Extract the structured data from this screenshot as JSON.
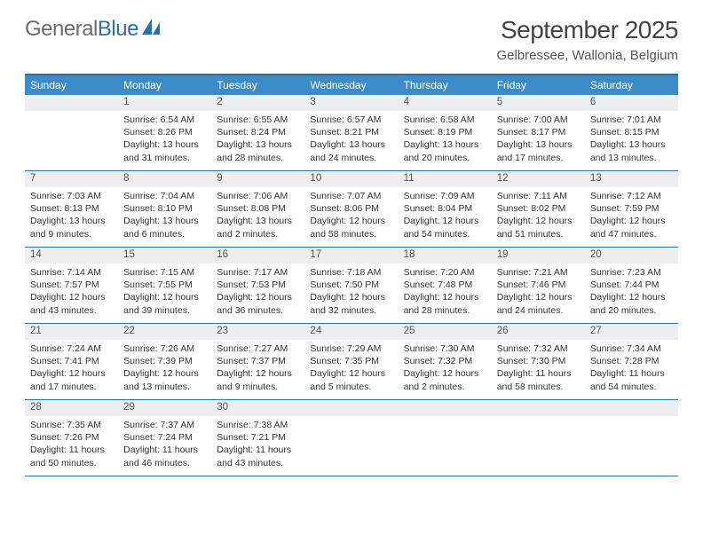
{
  "logo": {
    "part1": "General",
    "part2": "Blue"
  },
  "title": "September 2025",
  "subtitle": "Gelbressee, Wallonia, Belgium",
  "colors": {
    "header_bg": "#3b8bc8",
    "border": "#2b6fab",
    "daynum_bg": "#eceeef",
    "text": "#333333"
  },
  "typography": {
    "title_fontsize": 28,
    "subtitle_fontsize": 15,
    "header_fontsize": 12,
    "cell_fontsize": 10.5
  },
  "day_headers": [
    "Sunday",
    "Monday",
    "Tuesday",
    "Wednesday",
    "Thursday",
    "Friday",
    "Saturday"
  ],
  "weeks": [
    [
      {
        "n": "",
        "lines": []
      },
      {
        "n": "1",
        "lines": [
          "Sunrise: 6:54 AM",
          "Sunset: 8:26 PM",
          "Daylight: 13 hours and 31 minutes."
        ]
      },
      {
        "n": "2",
        "lines": [
          "Sunrise: 6:55 AM",
          "Sunset: 8:24 PM",
          "Daylight: 13 hours and 28 minutes."
        ]
      },
      {
        "n": "3",
        "lines": [
          "Sunrise: 6:57 AM",
          "Sunset: 8:21 PM",
          "Daylight: 13 hours and 24 minutes."
        ]
      },
      {
        "n": "4",
        "lines": [
          "Sunrise: 6:58 AM",
          "Sunset: 8:19 PM",
          "Daylight: 13 hours and 20 minutes."
        ]
      },
      {
        "n": "5",
        "lines": [
          "Sunrise: 7:00 AM",
          "Sunset: 8:17 PM",
          "Daylight: 13 hours and 17 minutes."
        ]
      },
      {
        "n": "6",
        "lines": [
          "Sunrise: 7:01 AM",
          "Sunset: 8:15 PM",
          "Daylight: 13 hours and 13 minutes."
        ]
      }
    ],
    [
      {
        "n": "7",
        "lines": [
          "Sunrise: 7:03 AM",
          "Sunset: 8:13 PM",
          "Daylight: 13 hours and 9 minutes."
        ]
      },
      {
        "n": "8",
        "lines": [
          "Sunrise: 7:04 AM",
          "Sunset: 8:10 PM",
          "Daylight: 13 hours and 6 minutes."
        ]
      },
      {
        "n": "9",
        "lines": [
          "Sunrise: 7:06 AM",
          "Sunset: 8:08 PM",
          "Daylight: 13 hours and 2 minutes."
        ]
      },
      {
        "n": "10",
        "lines": [
          "Sunrise: 7:07 AM",
          "Sunset: 8:06 PM",
          "Daylight: 12 hours and 58 minutes."
        ]
      },
      {
        "n": "11",
        "lines": [
          "Sunrise: 7:09 AM",
          "Sunset: 8:04 PM",
          "Daylight: 12 hours and 54 minutes."
        ]
      },
      {
        "n": "12",
        "lines": [
          "Sunrise: 7:11 AM",
          "Sunset: 8:02 PM",
          "Daylight: 12 hours and 51 minutes."
        ]
      },
      {
        "n": "13",
        "lines": [
          "Sunrise: 7:12 AM",
          "Sunset: 7:59 PM",
          "Daylight: 12 hours and 47 minutes."
        ]
      }
    ],
    [
      {
        "n": "14",
        "lines": [
          "Sunrise: 7:14 AM",
          "Sunset: 7:57 PM",
          "Daylight: 12 hours and 43 minutes."
        ]
      },
      {
        "n": "15",
        "lines": [
          "Sunrise: 7:15 AM",
          "Sunset: 7:55 PM",
          "Daylight: 12 hours and 39 minutes."
        ]
      },
      {
        "n": "16",
        "lines": [
          "Sunrise: 7:17 AM",
          "Sunset: 7:53 PM",
          "Daylight: 12 hours and 36 minutes."
        ]
      },
      {
        "n": "17",
        "lines": [
          "Sunrise: 7:18 AM",
          "Sunset: 7:50 PM",
          "Daylight: 12 hours and 32 minutes."
        ]
      },
      {
        "n": "18",
        "lines": [
          "Sunrise: 7:20 AM",
          "Sunset: 7:48 PM",
          "Daylight: 12 hours and 28 minutes."
        ]
      },
      {
        "n": "19",
        "lines": [
          "Sunrise: 7:21 AM",
          "Sunset: 7:46 PM",
          "Daylight: 12 hours and 24 minutes."
        ]
      },
      {
        "n": "20",
        "lines": [
          "Sunrise: 7:23 AM",
          "Sunset: 7:44 PM",
          "Daylight: 12 hours and 20 minutes."
        ]
      }
    ],
    [
      {
        "n": "21",
        "lines": [
          "Sunrise: 7:24 AM",
          "Sunset: 7:41 PM",
          "Daylight: 12 hours and 17 minutes."
        ]
      },
      {
        "n": "22",
        "lines": [
          "Sunrise: 7:26 AM",
          "Sunset: 7:39 PM",
          "Daylight: 12 hours and 13 minutes."
        ]
      },
      {
        "n": "23",
        "lines": [
          "Sunrise: 7:27 AM",
          "Sunset: 7:37 PM",
          "Daylight: 12 hours and 9 minutes."
        ]
      },
      {
        "n": "24",
        "lines": [
          "Sunrise: 7:29 AM",
          "Sunset: 7:35 PM",
          "Daylight: 12 hours and 5 minutes."
        ]
      },
      {
        "n": "25",
        "lines": [
          "Sunrise: 7:30 AM",
          "Sunset: 7:32 PM",
          "Daylight: 12 hours and 2 minutes."
        ]
      },
      {
        "n": "26",
        "lines": [
          "Sunrise: 7:32 AM",
          "Sunset: 7:30 PM",
          "Daylight: 11 hours and 58 minutes."
        ]
      },
      {
        "n": "27",
        "lines": [
          "Sunrise: 7:34 AM",
          "Sunset: 7:28 PM",
          "Daylight: 11 hours and 54 minutes."
        ]
      }
    ],
    [
      {
        "n": "28",
        "lines": [
          "Sunrise: 7:35 AM",
          "Sunset: 7:26 PM",
          "Daylight: 11 hours and 50 minutes."
        ]
      },
      {
        "n": "29",
        "lines": [
          "Sunrise: 7:37 AM",
          "Sunset: 7:24 PM",
          "Daylight: 11 hours and 46 minutes."
        ]
      },
      {
        "n": "30",
        "lines": [
          "Sunrise: 7:38 AM",
          "Sunset: 7:21 PM",
          "Daylight: 11 hours and 43 minutes."
        ]
      },
      {
        "n": "",
        "lines": [],
        "trailing": true
      },
      {
        "n": "",
        "lines": [],
        "trailing": true
      },
      {
        "n": "",
        "lines": [],
        "trailing": true
      },
      {
        "n": "",
        "lines": [],
        "trailing": true
      }
    ]
  ]
}
